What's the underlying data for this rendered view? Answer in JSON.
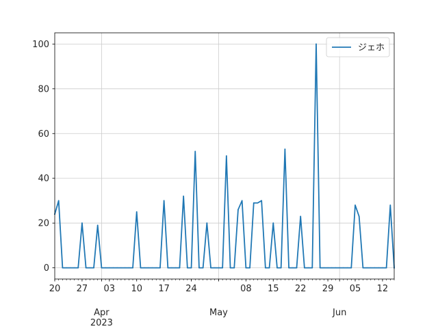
{
  "chart_data": {
    "type": "line",
    "title": "",
    "xlabel": "",
    "ylabel": "",
    "series": [
      {
        "name": "ジェホ",
        "color": "#1f77b4",
        "points": [
          [
            "2023-03-20",
            24
          ],
          [
            "2023-03-21",
            30
          ],
          [
            "2023-03-22",
            0
          ],
          [
            "2023-03-23",
            0
          ],
          [
            "2023-03-24",
            0
          ],
          [
            "2023-03-25",
            0
          ],
          [
            "2023-03-26",
            0
          ],
          [
            "2023-03-27",
            20
          ],
          [
            "2023-03-28",
            0
          ],
          [
            "2023-03-29",
            0
          ],
          [
            "2023-03-30",
            0
          ],
          [
            "2023-03-31",
            19
          ],
          [
            "2023-04-01",
            0
          ],
          [
            "2023-04-02",
            0
          ],
          [
            "2023-04-03",
            0
          ],
          [
            "2023-04-04",
            0
          ],
          [
            "2023-04-05",
            0
          ],
          [
            "2023-04-06",
            0
          ],
          [
            "2023-04-07",
            0
          ],
          [
            "2023-04-08",
            0
          ],
          [
            "2023-04-09",
            0
          ],
          [
            "2023-04-10",
            25
          ],
          [
            "2023-04-11",
            0
          ],
          [
            "2023-04-12",
            0
          ],
          [
            "2023-04-13",
            0
          ],
          [
            "2023-04-14",
            0
          ],
          [
            "2023-04-15",
            0
          ],
          [
            "2023-04-16",
            0
          ],
          [
            "2023-04-17",
            30
          ],
          [
            "2023-04-18",
            0
          ],
          [
            "2023-04-19",
            0
          ],
          [
            "2023-04-20",
            0
          ],
          [
            "2023-04-21",
            0
          ],
          [
            "2023-04-22",
            32
          ],
          [
            "2023-04-23",
            0
          ],
          [
            "2023-04-24",
            0
          ],
          [
            "2023-04-25",
            52
          ],
          [
            "2023-04-26",
            0
          ],
          [
            "2023-04-27",
            0
          ],
          [
            "2023-04-28",
            20
          ],
          [
            "2023-04-29",
            0
          ],
          [
            "2023-04-30",
            0
          ],
          [
            "2023-05-01",
            0
          ],
          [
            "2023-05-02",
            0
          ],
          [
            "2023-05-03",
            50
          ],
          [
            "2023-05-04",
            0
          ],
          [
            "2023-05-05",
            0
          ],
          [
            "2023-05-06",
            26
          ],
          [
            "2023-05-07",
            30
          ],
          [
            "2023-05-08",
            0
          ],
          [
            "2023-05-09",
            0
          ],
          [
            "2023-05-10",
            29
          ],
          [
            "2023-05-11",
            29
          ],
          [
            "2023-05-12",
            30
          ],
          [
            "2023-05-13",
            0
          ],
          [
            "2023-05-14",
            0
          ],
          [
            "2023-05-15",
            20
          ],
          [
            "2023-05-16",
            0
          ],
          [
            "2023-05-17",
            0
          ],
          [
            "2023-05-18",
            53
          ],
          [
            "2023-05-19",
            0
          ],
          [
            "2023-05-20",
            0
          ],
          [
            "2023-05-21",
            0
          ],
          [
            "2023-05-22",
            23
          ],
          [
            "2023-05-23",
            0
          ],
          [
            "2023-05-24",
            0
          ],
          [
            "2023-05-25",
            0
          ],
          [
            "2023-05-26",
            100
          ],
          [
            "2023-05-27",
            0
          ],
          [
            "2023-05-28",
            0
          ],
          [
            "2023-05-29",
            0
          ],
          [
            "2023-05-30",
            0
          ],
          [
            "2023-05-31",
            0
          ],
          [
            "2023-06-01",
            0
          ],
          [
            "2023-06-02",
            0
          ],
          [
            "2023-06-03",
            0
          ],
          [
            "2023-06-04",
            0
          ],
          [
            "2023-06-05",
            28
          ],
          [
            "2023-06-06",
            23
          ],
          [
            "2023-06-07",
            0
          ],
          [
            "2023-06-08",
            0
          ],
          [
            "2023-06-09",
            0
          ],
          [
            "2023-06-10",
            0
          ],
          [
            "2023-06-11",
            0
          ],
          [
            "2023-06-12",
            0
          ],
          [
            "2023-06-13",
            0
          ],
          [
            "2023-06-14",
            28
          ],
          [
            "2023-06-15",
            0
          ]
        ]
      }
    ],
    "xlim": [
      "2023-03-20",
      "2023-06-15"
    ],
    "ylim": [
      -5,
      105
    ],
    "x_minor_ticks": [
      {
        "date": "2023-03-20",
        "label": "20"
      },
      {
        "date": "2023-03-27",
        "label": "27"
      },
      {
        "date": "2023-04-03",
        "label": "03"
      },
      {
        "date": "2023-04-10",
        "label": "10"
      },
      {
        "date": "2023-04-17",
        "label": "17"
      },
      {
        "date": "2023-04-24",
        "label": "24"
      },
      {
        "date": "2023-05-08",
        "label": "08"
      },
      {
        "date": "2023-05-15",
        "label": "15"
      },
      {
        "date": "2023-05-22",
        "label": "22"
      },
      {
        "date": "2023-05-29",
        "label": "29"
      },
      {
        "date": "2023-06-05",
        "label": "05"
      },
      {
        "date": "2023-06-12",
        "label": "12"
      }
    ],
    "x_major_ticks": [
      {
        "date": "2023-04-01",
        "label": "Apr",
        "sublabel": "2023"
      },
      {
        "date": "2023-05-01",
        "label": "May",
        "sublabel": ""
      },
      {
        "date": "2023-06-01",
        "label": "Jun",
        "sublabel": ""
      }
    ],
    "y_ticks": [
      0,
      20,
      40,
      60,
      80,
      100
    ],
    "grid": true,
    "legend_position": "top-right"
  }
}
